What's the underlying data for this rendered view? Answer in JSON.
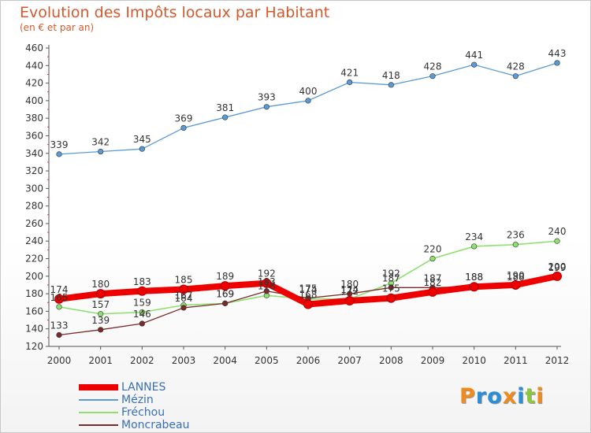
{
  "title": "Evolution des Impôts locaux par Habitant",
  "subtitle": "(en € et par an)",
  "logo": {
    "text": "Proxiti",
    "letters": [
      {
        "char": "P",
        "color": "#f08a1c"
      },
      {
        "char": "r",
        "color": "#2a8fd8"
      },
      {
        "char": "o",
        "color": "#2a8fd8"
      },
      {
        "char": "x",
        "color": "#f08a1c"
      },
      {
        "char": "i",
        "color": "#2a8fd8"
      },
      {
        "char": "t",
        "color": "#8dc63f"
      },
      {
        "char": "i",
        "color": "#f08a1c"
      }
    ]
  },
  "chart_data": {
    "type": "line",
    "title": "Evolution des Impôts locaux par Habitant",
    "subtitle": "(en € et par an)",
    "x": [
      "2000",
      "2001",
      "2002",
      "2003",
      "2004",
      "2005",
      "2006",
      "2007",
      "2008",
      "2009",
      "2010",
      "2011",
      "2012"
    ],
    "ylim": [
      120,
      460
    ],
    "yticks": [
      120,
      140,
      160,
      180,
      200,
      220,
      240,
      260,
      280,
      300,
      320,
      340,
      360,
      380,
      400,
      420,
      440,
      460
    ],
    "grid": false,
    "legend_position": "bottom-left",
    "series": [
      {
        "name": "LANNES",
        "color": "#ee0000",
        "width": 8,
        "values": [
          174,
          180,
          183,
          185,
          189,
          192,
          168,
          172,
          175,
          182,
          188,
          190,
          200
        ],
        "labels": [
          "174",
          "180",
          "183",
          "185",
          "189",
          "192",
          "168",
          "172",
          "175",
          "182",
          "188",
          "190",
          "200"
        ]
      },
      {
        "name": "Mézin",
        "color": "#5b9bd5",
        "width": 1.3,
        "values": [
          339,
          342,
          345,
          369,
          381,
          393,
          400,
          421,
          418,
          428,
          441,
          428,
          443
        ],
        "labels": [
          "339",
          "342",
          "345",
          "369",
          "381",
          "393",
          "400",
          "421",
          "418",
          "428",
          "441",
          "428",
          "443"
        ]
      },
      {
        "name": "Fréchou",
        "color": "#90e070",
        "width": 1.6,
        "values": [
          165,
          157,
          159,
          167,
          169,
          178,
          174,
          174,
          192,
          220,
          234,
          236,
          240
        ],
        "labels": [
          "165",
          "157",
          "159",
          "167",
          "169",
          "178",
          "174",
          "174",
          "192",
          "220",
          "234",
          "236",
          "240"
        ]
      },
      {
        "name": "Moncrabeau",
        "color": "#7a2a2a",
        "width": 1.3,
        "values": [
          133,
          139,
          146,
          164,
          169,
          183,
          175,
          180,
          187,
          187,
          188,
          188,
          199
        ],
        "labels": [
          "133",
          "139",
          "146",
          "164",
          "169",
          "183",
          "175",
          "180",
          "187",
          "187",
          "188",
          "188",
          "199"
        ]
      }
    ]
  }
}
